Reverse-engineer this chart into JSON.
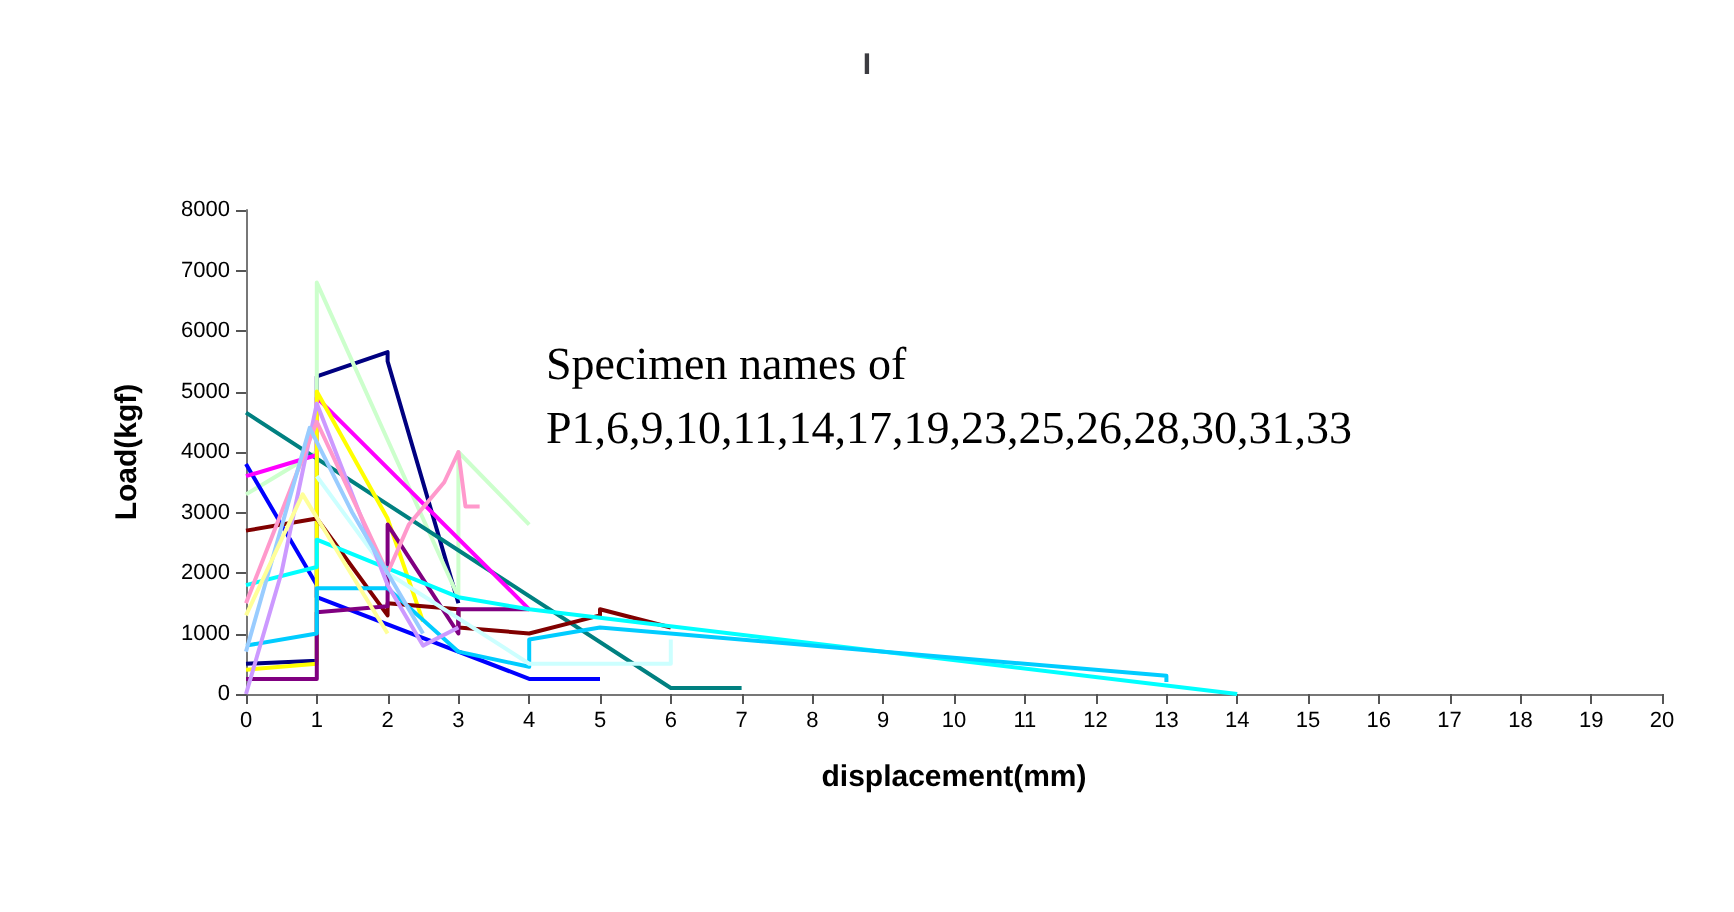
{
  "chart_data": {
    "type": "line",
    "title": "I",
    "xlabel": "displacement(mm)",
    "ylabel": "Load(kgf)",
    "annotations": [
      "Specimen names of\nP1,6,9,10,11,14,17,19,23,25,26,28,30,31,33"
    ],
    "xlim": [
      0,
      20
    ],
    "ylim": [
      0,
      8000
    ],
    "xticks": [
      0,
      1,
      2,
      3,
      4,
      5,
      6,
      7,
      8,
      9,
      10,
      11,
      12,
      13,
      14,
      15,
      16,
      17,
      18,
      19,
      20
    ],
    "yticks": [
      0,
      1000,
      2000,
      3000,
      4000,
      5000,
      6000,
      7000,
      8000
    ],
    "grid": false,
    "marker": "none",
    "line_style": "solid",
    "series": [
      {
        "color": "#000080",
        "x": [
          0,
          1,
          1,
          2,
          2,
          3
        ],
        "values": [
          500,
          550,
          5250,
          5650,
          5500,
          1500
        ]
      },
      {
        "color": "#ccffcc",
        "x": [
          0,
          1,
          1,
          3,
          3,
          4
        ],
        "values": [
          3300,
          4000,
          6800,
          1600,
          4000,
          2800
        ]
      },
      {
        "color": "#008080",
        "x": [
          0,
          6,
          7
        ],
        "values": [
          4650,
          100,
          100
        ]
      },
      {
        "color": "#0000ff",
        "x": [
          0,
          1,
          1,
          4,
          5
        ],
        "values": [
          3800,
          1800,
          1600,
          250,
          250
        ]
      },
      {
        "color": "#ff00ff",
        "x": [
          0,
          1,
          1,
          4
        ],
        "values": [
          3600,
          3950,
          4900,
          1400
        ]
      },
      {
        "color": "#ffff00",
        "x": [
          0,
          1,
          1,
          2,
          2.5
        ],
        "values": [
          400,
          500,
          5000,
          2900,
          1200
        ]
      },
      {
        "color": "#800000",
        "x": [
          0,
          1,
          2,
          2,
          3,
          3,
          4,
          5,
          5,
          6
        ],
        "values": [
          2700,
          2900,
          1300,
          1500,
          1400,
          1100,
          1000,
          1300,
          1400,
          1100
        ]
      },
      {
        "color": "#800080",
        "x": [
          0,
          1,
          1,
          2,
          2,
          3,
          3,
          4
        ],
        "values": [
          250,
          250,
          1350,
          1450,
          2800,
          1000,
          1400,
          1400
        ]
      },
      {
        "color": "#00ffff",
        "x": [
          0,
          1,
          1,
          3,
          4,
          14
        ],
        "values": [
          1800,
          2100,
          2550,
          1600,
          1400,
          0
        ]
      },
      {
        "color": "#00ccff",
        "x": [
          0,
          1,
          1,
          2,
          3,
          4,
          4,
          5,
          13,
          13
        ],
        "values": [
          800,
          1000,
          1750,
          1750,
          700,
          450,
          900,
          1100,
          300,
          200
        ]
      },
      {
        "color": "#ccffff",
        "x": [
          1,
          2,
          4,
          6,
          6
        ],
        "values": [
          3600,
          2000,
          500,
          500,
          900
        ]
      },
      {
        "color": "#cc99ff",
        "x": [
          0,
          0.5,
          1,
          2,
          2.5,
          3
        ],
        "values": [
          0,
          2000,
          4800,
          1800,
          800,
          1100
        ]
      },
      {
        "color": "#ff99cc",
        "x": [
          0,
          1,
          2,
          2.3,
          2.8,
          3,
          3.1,
          3.3
        ],
        "values": [
          1500,
          4500,
          2000,
          2800,
          3500,
          4000,
          3100,
          3100
        ]
      },
      {
        "color": "#99ccff",
        "x": [
          0,
          0.9,
          1.5,
          2.5
        ],
        "values": [
          700,
          4400,
          3000,
          1000
        ]
      },
      {
        "color": "#ffff99",
        "x": [
          0,
          0.8,
          2
        ],
        "values": [
          1300,
          3300,
          1000
        ]
      }
    ]
  }
}
